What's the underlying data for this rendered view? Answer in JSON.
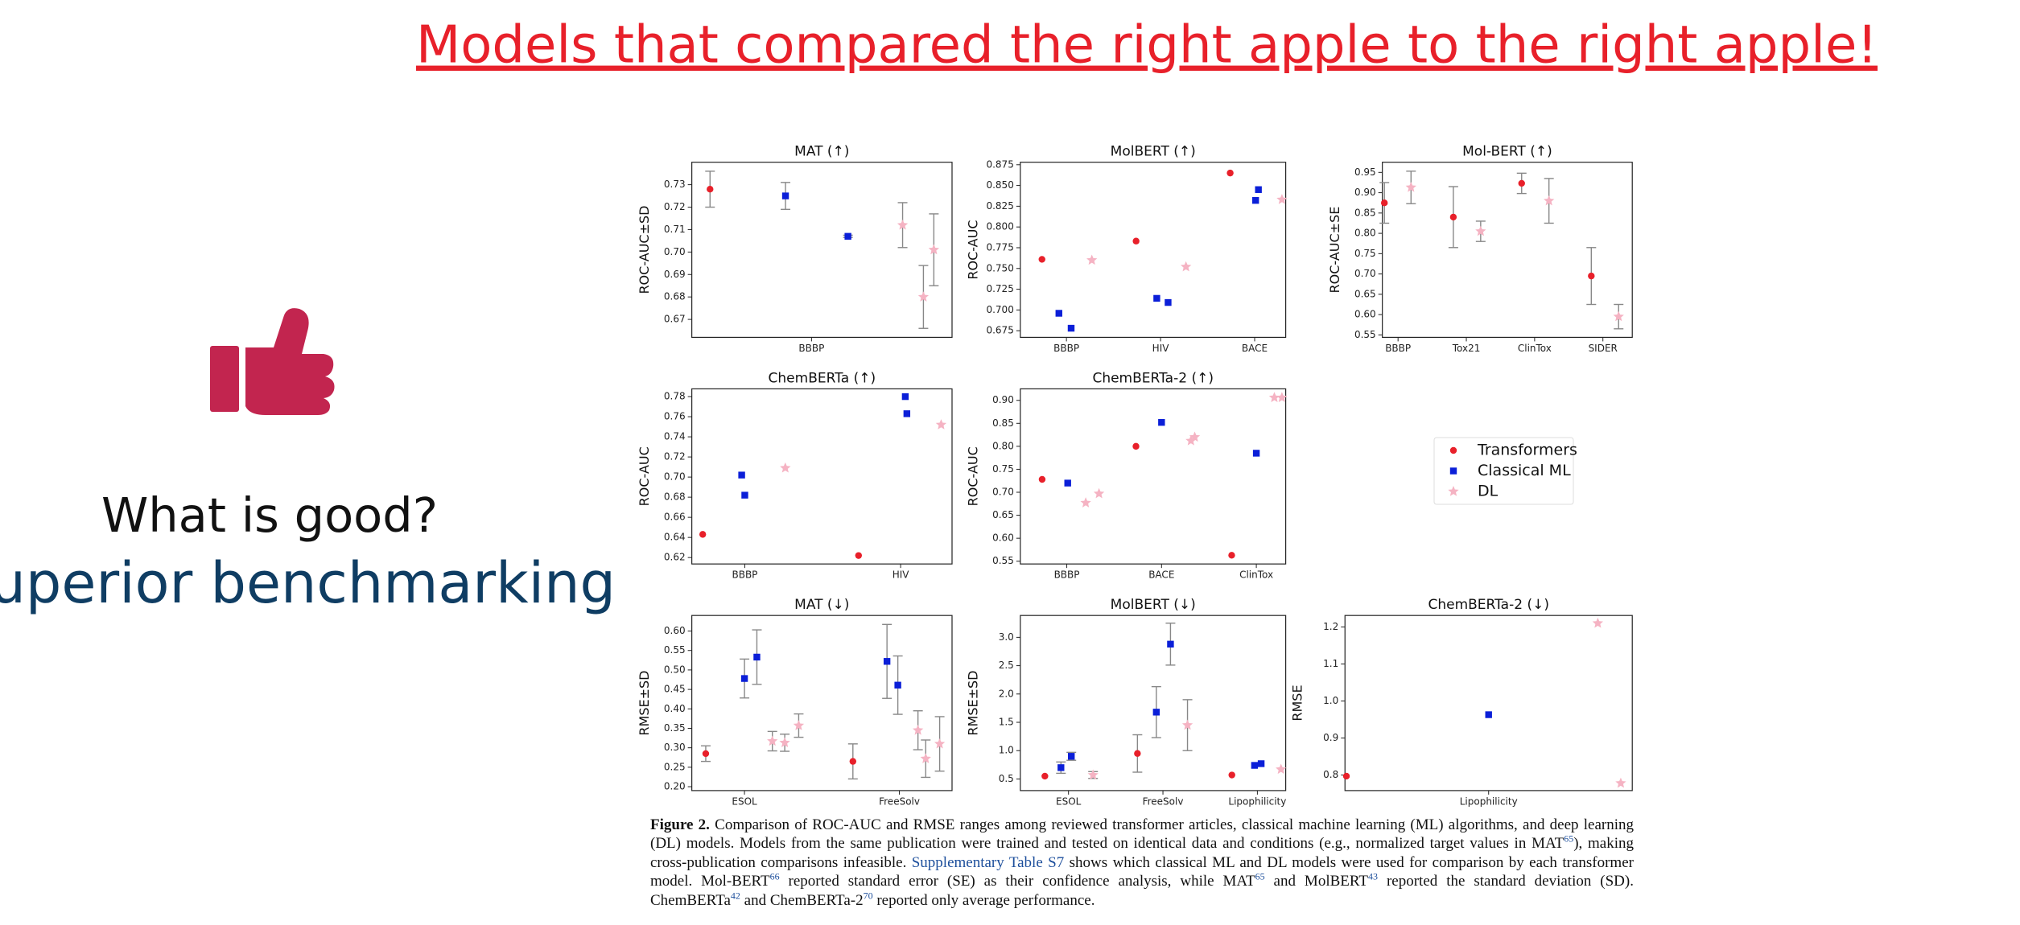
{
  "slide": {
    "title": "Models that compared the right apple to the right apple!",
    "question": "What is good?",
    "answer": "Superior benchmarking"
  },
  "legend": [
    {
      "name": "Transformers",
      "color": "#e8202a",
      "marker": "circle"
    },
    {
      "name": "Classical ML",
      "color": "#0b1fd8",
      "marker": "square"
    },
    {
      "name": "DL",
      "color": "#f5b3c3",
      "marker": "star"
    }
  ],
  "chart_data": [
    {
      "type": "scatter",
      "title": "MAT (↑)",
      "y_label": "ROC-AUC±SD",
      "xlim": [
        -0.46,
        0.54
      ],
      "ylim": [
        0.662,
        0.74
      ],
      "xticks": [
        {
          "value": 0,
          "label": "BBBP"
        }
      ],
      "yticks": [
        0.67,
        0.68,
        0.69,
        {
          "value": 0.7,
          "label": "0.70"
        },
        0.71,
        0.72,
        0.73
      ],
      "series": [
        {
          "marker": "circle",
          "color": "#e8202a",
          "x": [
            -0.39
          ],
          "values": [
            0.728
          ],
          "errors": [
            0.008
          ]
        },
        {
          "marker": "square",
          "color": "#0b1fd8",
          "x": [
            -0.1,
            0.14
          ],
          "values": [
            0.725,
            0.707
          ],
          "errors": [
            0.006,
            0.0005
          ]
        },
        {
          "marker": "star",
          "color": "#f5b3c3",
          "x": [
            0.35,
            0.43,
            0.47
          ],
          "values": [
            0.712,
            0.68,
            0.701
          ],
          "errors": [
            0.01,
            0.014,
            0.016
          ]
        }
      ]
    },
    {
      "type": "scatter",
      "title": "MolBERT (↑)",
      "y_label": "ROC-AUC",
      "xlim": [
        -0.49,
        2.33
      ],
      "ylim": [
        0.667,
        0.878
      ],
      "xticks": [
        {
          "value": 0,
          "label": "BBBP"
        },
        {
          "value": 1,
          "label": "HIV"
        },
        {
          "value": 2,
          "label": "BACE"
        }
      ],
      "yticks": [
        0.675,
        {
          "value": 0.7,
          "label": "0.700"
        },
        0.725,
        {
          "value": 0.75,
          "label": "0.750"
        },
        0.775,
        {
          "value": 0.8,
          "label": "0.800"
        },
        0.825,
        {
          "value": 0.85,
          "label": "0.850"
        },
        0.875
      ],
      "series": [
        {
          "marker": "circle",
          "color": "#e8202a",
          "x": [
            -0.26,
            0.74,
            1.74
          ],
          "values": [
            0.761,
            0.783,
            0.865
          ]
        },
        {
          "marker": "square",
          "color": "#0b1fd8",
          "x": [
            -0.08,
            0.05,
            0.96,
            1.08,
            2.01,
            2.04
          ],
          "values": [
            0.696,
            0.678,
            0.714,
            0.709,
            0.832,
            0.845
          ]
        },
        {
          "marker": "star",
          "color": "#f5b3c3",
          "x": [
            0.27,
            1.27,
            2.29
          ],
          "values": [
            0.76,
            0.752,
            0.833
          ]
        }
      ]
    },
    {
      "type": "scatter",
      "title": "Mol-BERT (↑)",
      "y_label": "ROC-AUC±SE",
      "xlim": [
        -0.23,
        3.43
      ],
      "ylim": [
        0.544,
        0.975
      ],
      "xticks": [
        {
          "value": 0,
          "label": "BBBP"
        },
        {
          "value": 1,
          "label": "Tox21"
        },
        {
          "value": 2,
          "label": "ClinTox"
        },
        {
          "value": 3,
          "label": "SIDER"
        }
      ],
      "yticks": [
        0.55,
        {
          "value": 0.6,
          "label": "0.60"
        },
        0.65,
        {
          "value": 0.7,
          "label": "0.70"
        },
        0.75,
        {
          "value": 0.8,
          "label": "0.80"
        },
        0.85,
        {
          "value": 0.9,
          "label": "0.90"
        },
        0.95
      ],
      "series": [
        {
          "marker": "circle",
          "color": "#e8202a",
          "x": [
            -0.2,
            0.81,
            1.81,
            2.83
          ],
          "values": [
            0.875,
            0.84,
            0.923,
            0.695
          ],
          "errors": [
            0.05,
            0.075,
            0.025,
            0.07
          ]
        },
        {
          "marker": "star",
          "color": "#f5b3c3",
          "x": [
            0.19,
            1.21,
            2.21,
            3.23
          ],
          "values": [
            0.913,
            0.805,
            0.88,
            0.595
          ],
          "errors": [
            0.04,
            0.025,
            0.055,
            0.03
          ]
        }
      ]
    },
    {
      "type": "scatter",
      "title": "ChemBERTa (↑)",
      "y_label": "ROC-AUC",
      "xlim": [
        -0.34,
        1.33
      ],
      "ylim": [
        0.6136,
        0.7877
      ],
      "xticks": [
        {
          "value": 0,
          "label": "BBBP"
        },
        {
          "value": 1,
          "label": "HIV"
        }
      ],
      "yticks": [
        0.62,
        0.64,
        0.66,
        0.68,
        {
          "value": 0.7,
          "label": "0.70"
        },
        0.72,
        0.74,
        0.76,
        0.78
      ],
      "series": [
        {
          "marker": "circle",
          "color": "#e8202a",
          "x": [
            -0.27,
            0.73
          ],
          "values": [
            0.643,
            0.622
          ]
        },
        {
          "marker": "square",
          "color": "#0b1fd8",
          "x": [
            -0.02,
            0,
            1.03,
            1.04
          ],
          "values": [
            0.702,
            0.682,
            0.78,
            0.763
          ]
        },
        {
          "marker": "star",
          "color": "#f5b3c3",
          "x": [
            0.26,
            1.26
          ],
          "values": [
            0.709,
            0.752
          ]
        }
      ]
    },
    {
      "type": "scatter",
      "title": "ChemBERTa-2 (↑)",
      "y_label": "ROC-AUC",
      "xlim": [
        -0.49,
        2.31
      ],
      "ylim": [
        0.544,
        0.925
      ],
      "xticks": [
        {
          "value": 0,
          "label": "BBBP"
        },
        {
          "value": 1,
          "label": "BACE"
        },
        {
          "value": 2,
          "label": "ClinTox"
        }
      ],
      "yticks": [
        0.55,
        {
          "value": 0.6,
          "label": "0.60"
        },
        0.65,
        {
          "value": 0.7,
          "label": "0.70"
        },
        0.75,
        {
          "value": 0.8,
          "label": "0.80"
        },
        0.85,
        {
          "value": 0.9,
          "label": "0.90"
        }
      ],
      "series": [
        {
          "marker": "circle",
          "color": "#e8202a",
          "x": [
            -0.26,
            0.73,
            1.74
          ],
          "values": [
            0.728,
            0.8,
            0.563
          ]
        },
        {
          "marker": "square",
          "color": "#0b1fd8",
          "x": [
            0.01,
            1,
            2
          ],
          "values": [
            0.72,
            0.852,
            0.785
          ]
        },
        {
          "marker": "star",
          "color": "#f5b3c3",
          "x": [
            0.2,
            0.34,
            1.31,
            1.35,
            2.19,
            2.27
          ],
          "values": [
            0.677,
            0.697,
            0.812,
            0.82,
            0.906,
            0.906
          ]
        }
      ]
    },
    {
      "type": "scatter",
      "title": "MAT (↓)",
      "y_label": "RMSE±SD",
      "xlim": [
        -0.34,
        1.34
      ],
      "ylim": [
        0.19,
        0.64
      ],
      "xticks": [
        {
          "value": 0,
          "label": "ESOL"
        },
        {
          "value": 1,
          "label": "FreeSolv"
        }
      ],
      "yticks": [
        {
          "value": 0.2,
          "label": "0.20"
        },
        0.25,
        {
          "value": 0.3,
          "label": "0.30"
        },
        0.35,
        {
          "value": 0.4,
          "label": "0.40"
        },
        0.45,
        {
          "value": 0.5,
          "label": "0.50"
        },
        0.55,
        {
          "value": 0.6,
          "label": "0.60"
        }
      ],
      "series": [
        {
          "marker": "circle",
          "color": "#e8202a",
          "x": [
            -0.25,
            0.7
          ],
          "values": [
            0.285,
            0.265
          ],
          "errors": [
            0.02,
            0.045
          ]
        },
        {
          "marker": "square",
          "color": "#0b1fd8",
          "x": [
            0,
            0.08,
            0.92,
            0.99
          ],
          "values": [
            0.478,
            0.533,
            0.522,
            0.461
          ],
          "errors": [
            0.05,
            0.07,
            0.095,
            0.075
          ]
        },
        {
          "marker": "star",
          "color": "#f5b3c3",
          "x": [
            0.18,
            0.26,
            0.35,
            1.12,
            1.17,
            1.26
          ],
          "values": [
            0.317,
            0.313,
            0.357,
            0.345,
            0.272,
            0.31
          ],
          "errors": [
            0.025,
            0.022,
            0.03,
            0.05,
            0.048,
            0.07
          ]
        }
      ]
    },
    {
      "type": "scatter",
      "title": "MolBERT (↓)",
      "y_label": "RMSE±SD",
      "xlim": [
        -0.51,
        2.3
      ],
      "ylim": [
        0.295,
        3.386
      ],
      "xticks": [
        {
          "value": 0,
          "label": "ESOL"
        },
        {
          "value": 1,
          "label": "FreeSolv"
        },
        {
          "value": 2,
          "label": "Lipophilicity"
        }
      ],
      "yticks": [
        0.5,
        {
          "value": 1,
          "label": "1.0"
        },
        1.5,
        {
          "value": 2,
          "label": "2.0"
        },
        2.5,
        {
          "value": 3,
          "label": "3.0"
        }
      ],
      "series": [
        {
          "marker": "circle",
          "color": "#e8202a",
          "x": [
            -0.25,
            0.73,
            1.73
          ],
          "values": [
            0.55,
            0.95,
            0.57
          ],
          "errors": [
            null,
            0.33,
            null
          ]
        },
        {
          "marker": "square",
          "color": "#0b1fd8",
          "x": [
            -0.08,
            0.03,
            0.93,
            1.08,
            1.97,
            2.04
          ],
          "values": [
            0.7,
            0.9,
            1.68,
            2.88,
            0.74,
            0.77
          ],
          "errors": [
            0.1,
            0.07,
            0.45,
            0.37,
            null,
            null
          ]
        },
        {
          "marker": "star",
          "color": "#f5b3c3",
          "x": [
            0.26,
            1.26,
            2.25
          ],
          "values": [
            0.57,
            1.45,
            0.67
          ],
          "errors": [
            0.06,
            0.45,
            null
          ]
        }
      ]
    },
    {
      "type": "scatter",
      "title": "ChemBERTa-2 (↓)",
      "y_label": "RMSE",
      "xlim": [
        -0.5,
        0.5
      ],
      "ylim": [
        0.758,
        1.231
      ],
      "xticks": [
        {
          "value": 0,
          "label": "Lipophilicity"
        }
      ],
      "yticks": [
        0.8,
        0.9,
        {
          "value": 1,
          "label": "1.0"
        },
        1.1,
        1.2
      ],
      "series": [
        {
          "marker": "circle",
          "color": "#e8202a",
          "x": [
            -0.495
          ],
          "values": [
            0.797
          ]
        },
        {
          "marker": "square",
          "color": "#0b1fd8",
          "x": [
            0
          ],
          "values": [
            0.963
          ]
        },
        {
          "marker": "star",
          "color": "#f5b3c3",
          "x": [
            0.38,
            0.46
          ],
          "values": [
            1.21,
            0.778
          ]
        }
      ]
    }
  ],
  "caption": {
    "label": "Figure 2.",
    "parts": [
      "Comparison of ROC-AUC and RMSE ranges among reviewed transformer articles, classical machine learning (ML) algorithms, and deep learning (DL) models. Models from the same publication were trained and tested on identical data and conditions (e.g., normalized target values in MAT",
      "65",
      "), making cross-publication comparisons infeasible. ",
      "Supplementary Table S7",
      " shows which classical ML and DL models were used for comparison by each transformer model. Mol-BERT",
      "66",
      " reported standard error (SE) as their confidence analysis, while MAT",
      "65",
      " and MolBERT",
      "43",
      " reported the standard deviation (SD). ChemBERTa",
      "42",
      " and ChemBERTa-2",
      "70",
      " reported only average performance."
    ]
  }
}
